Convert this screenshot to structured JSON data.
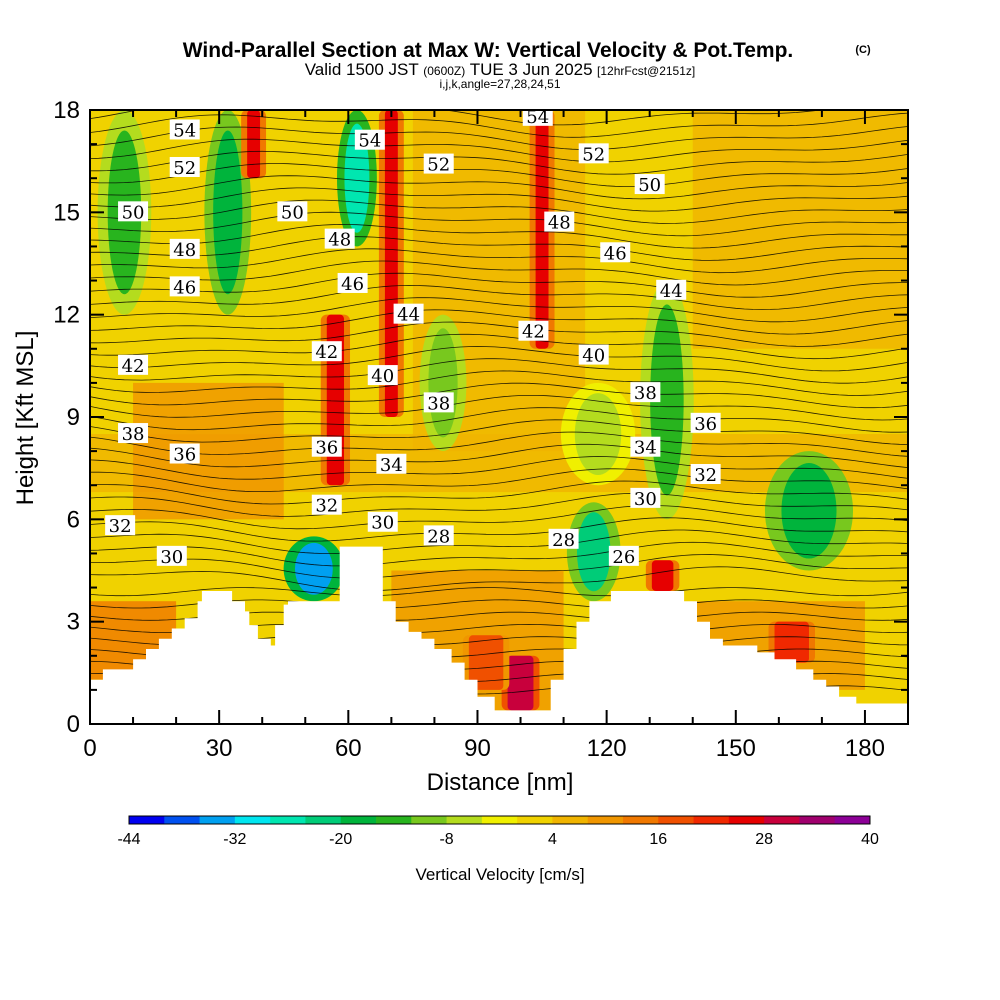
{
  "title": {
    "main": "Wind-Parallel Section at Max W: Vertical Velocity & Pot.Temp.",
    "copyright": "(C)",
    "valid_prefix": "Valid 1500 JST",
    "valid_utc": "(0600Z)",
    "valid_date": "TUE 3 Jun 2025",
    "forecast": "[12hrFcst@2151z]",
    "indices": "i,j,k,angle=27,28,24,51"
  },
  "chart_data": {
    "type": "heatmap",
    "xlabel": "Distance [nm]",
    "ylabel": "Height [Kft MSL]",
    "xlim": [
      0,
      190
    ],
    "ylim": [
      0,
      18
    ],
    "x_ticks": [
      0,
      30,
      60,
      90,
      120,
      150,
      180
    ],
    "y_ticks": [
      0,
      3,
      6,
      9,
      12,
      15,
      18
    ],
    "x_tick_labels": [
      "0",
      "30",
      "60",
      "90",
      "120",
      "150",
      "180"
    ],
    "y_tick_labels": [
      "0",
      "3",
      "6",
      "9",
      "12",
      "15",
      "18"
    ],
    "colorbar": {
      "title": "Vertical Velocity [cm/s]",
      "min": -44,
      "max": 40,
      "step": 4,
      "tick_values": [
        -44,
        -32,
        -20,
        -8,
        4,
        16,
        28,
        40
      ],
      "tick_labels": [
        "-44",
        "-32",
        "-20",
        "-8",
        "4",
        "16",
        "28",
        "40"
      ],
      "colors": [
        "#0000f0",
        "#0050f0",
        "#00a0f0",
        "#00e6f0",
        "#00e6b0",
        "#00cc78",
        "#00b43c",
        "#28b41e",
        "#78c81e",
        "#b4dc1e",
        "#f0f000",
        "#f0d200",
        "#f0b400",
        "#f09600",
        "#f07800",
        "#f05000",
        "#f02800",
        "#e60000",
        "#c8003c",
        "#a0006e",
        "#8c0096"
      ]
    },
    "terrain_height_kft": [
      [
        0,
        1.3
      ],
      [
        3,
        1.6
      ],
      [
        10,
        1.9
      ],
      [
        13,
        2.2
      ],
      [
        16,
        2.5
      ],
      [
        19,
        2.8
      ],
      [
        22,
        3.1
      ],
      [
        25,
        3.6
      ],
      [
        26,
        3.9
      ],
      [
        32,
        3.9
      ],
      [
        33,
        3.6
      ],
      [
        36,
        3.3
      ],
      [
        37,
        2.9
      ],
      [
        39,
        2.5
      ],
      [
        42,
        2.3
      ],
      [
        43,
        2.9
      ],
      [
        45,
        3.5
      ],
      [
        46,
        3.6
      ],
      [
        57,
        3.6
      ],
      [
        58,
        5.2
      ],
      [
        67,
        5.2
      ],
      [
        68,
        3.6
      ],
      [
        71,
        3.0
      ],
      [
        74,
        2.7
      ],
      [
        77,
        2.5
      ],
      [
        80,
        2.2
      ],
      [
        84,
        1.8
      ],
      [
        87,
        1.3
      ],
      [
        90,
        0.8
      ],
      [
        94,
        0.4
      ],
      [
        106,
        0.4
      ],
      [
        107,
        1.3
      ],
      [
        110,
        2.2
      ],
      [
        113,
        3.0
      ],
      [
        116,
        3.6
      ],
      [
        119,
        3.6
      ],
      [
        121,
        3.9
      ],
      [
        128,
        3.9
      ],
      [
        136,
        3.9
      ],
      [
        138,
        3.6
      ],
      [
        141,
        3.0
      ],
      [
        144,
        2.5
      ],
      [
        147,
        2.3
      ],
      [
        150,
        2.3
      ],
      [
        155,
        2.1
      ],
      [
        159,
        1.9
      ],
      [
        164,
        1.6
      ],
      [
        168,
        1.3
      ],
      [
        171,
        1.1
      ],
      [
        174,
        0.8
      ],
      [
        178,
        0.6
      ],
      [
        190,
        0.6
      ]
    ],
    "updraft_bands": [
      {
        "x": 38,
        "w": 3,
        "top": 18,
        "bottom": 16,
        "value": 26
      },
      {
        "x": 57,
        "w": 4,
        "top": 12,
        "bottom": 7,
        "value": 26
      },
      {
        "x": 70,
        "w": 3,
        "top": 18,
        "bottom": 9,
        "value": 24
      },
      {
        "x": 105,
        "w": 3,
        "top": 18,
        "bottom": 11,
        "value": 26
      },
      {
        "x": 100,
        "w": 6,
        "top": 2.0,
        "bottom": 0.4,
        "value": 28
      },
      {
        "x": 133,
        "w": 5,
        "top": 4.8,
        "bottom": 3.9,
        "value": 24
      },
      {
        "x": 163,
        "w": 8,
        "top": 3.0,
        "bottom": 1.8,
        "value": 20
      },
      {
        "x": 92,
        "w": 8,
        "top": 2.6,
        "bottom": 1.0,
        "value": 18
      }
    ],
    "downdraft_regions": [
      {
        "x": 8,
        "w": 5,
        "top": 18,
        "bottom": 12,
        "value": -16
      },
      {
        "x": 32,
        "w": 4,
        "top": 18,
        "bottom": 12,
        "value": -20
      },
      {
        "x": 52,
        "w": 6,
        "top": 5.5,
        "bottom": 3.6,
        "value": -36
      },
      {
        "x": 62,
        "w": 3,
        "top": 18,
        "bottom": 14,
        "value": -28
      },
      {
        "x": 117,
        "w": 5,
        "top": 6.5,
        "bottom": 3.6,
        "value": -24
      },
      {
        "x": 134,
        "w": 5,
        "top": 13,
        "bottom": 6,
        "value": -16
      },
      {
        "x": 167,
        "w": 10,
        "top": 8,
        "bottom": 4.5,
        "value": -20
      },
      {
        "x": 118,
        "w": 8,
        "top": 10,
        "bottom": 7,
        "value": -8
      },
      {
        "x": 82,
        "w": 4,
        "top": 12,
        "bottom": 8,
        "value": -10
      }
    ],
    "theta_contours_kelvin_offset": "labels show potential temperature (°C)",
    "theta_labels": [
      {
        "value": "54",
        "x": 22,
        "y": 17.4
      },
      {
        "value": "54",
        "x": 65,
        "y": 17.1
      },
      {
        "value": "54",
        "x": 104,
        "y": 17.8
      },
      {
        "value": "52",
        "x": 22,
        "y": 16.3
      },
      {
        "value": "52",
        "x": 81,
        "y": 16.4
      },
      {
        "value": "52",
        "x": 117,
        "y": 16.7
      },
      {
        "value": "50",
        "x": 10,
        "y": 15.0
      },
      {
        "value": "50",
        "x": 47,
        "y": 15.0
      },
      {
        "value": "50",
        "x": 130,
        "y": 15.8
      },
      {
        "value": "48",
        "x": 22,
        "y": 13.9
      },
      {
        "value": "48",
        "x": 58,
        "y": 14.2
      },
      {
        "value": "48",
        "x": 109,
        "y": 14.7
      },
      {
        "value": "46",
        "x": 22,
        "y": 12.8
      },
      {
        "value": "46",
        "x": 61,
        "y": 12.9
      },
      {
        "value": "46",
        "x": 122,
        "y": 13.8
      },
      {
        "value": "44",
        "x": 74,
        "y": 12.0
      },
      {
        "value": "44",
        "x": 135,
        "y": 12.7
      },
      {
        "value": "42",
        "x": 10,
        "y": 10.5
      },
      {
        "value": "42",
        "x": 55,
        "y": 10.9
      },
      {
        "value": "42",
        "x": 103,
        "y": 11.5
      },
      {
        "value": "40",
        "x": 68,
        "y": 10.2
      },
      {
        "value": "40",
        "x": 117,
        "y": 10.8
      },
      {
        "value": "38",
        "x": 10,
        "y": 8.5
      },
      {
        "value": "38",
        "x": 81,
        "y": 9.4
      },
      {
        "value": "38",
        "x": 129,
        "y": 9.7
      },
      {
        "value": "36",
        "x": 22,
        "y": 7.9
      },
      {
        "value": "36",
        "x": 55,
        "y": 8.1
      },
      {
        "value": "36",
        "x": 143,
        "y": 8.8
      },
      {
        "value": "34",
        "x": 70,
        "y": 7.6
      },
      {
        "value": "34",
        "x": 129,
        "y": 8.1
      },
      {
        "value": "32",
        "x": 7,
        "y": 5.8
      },
      {
        "value": "32",
        "x": 55,
        "y": 6.4
      },
      {
        "value": "32",
        "x": 143,
        "y": 7.3
      },
      {
        "value": "30",
        "x": 19,
        "y": 4.9
      },
      {
        "value": "30",
        "x": 68,
        "y": 5.9
      },
      {
        "value": "30",
        "x": 129,
        "y": 6.6
      },
      {
        "value": "28",
        "x": 81,
        "y": 5.5
      },
      {
        "value": "28",
        "x": 110,
        "y": 5.4
      },
      {
        "value": "26",
        "x": 124,
        "y": 4.9
      }
    ]
  }
}
